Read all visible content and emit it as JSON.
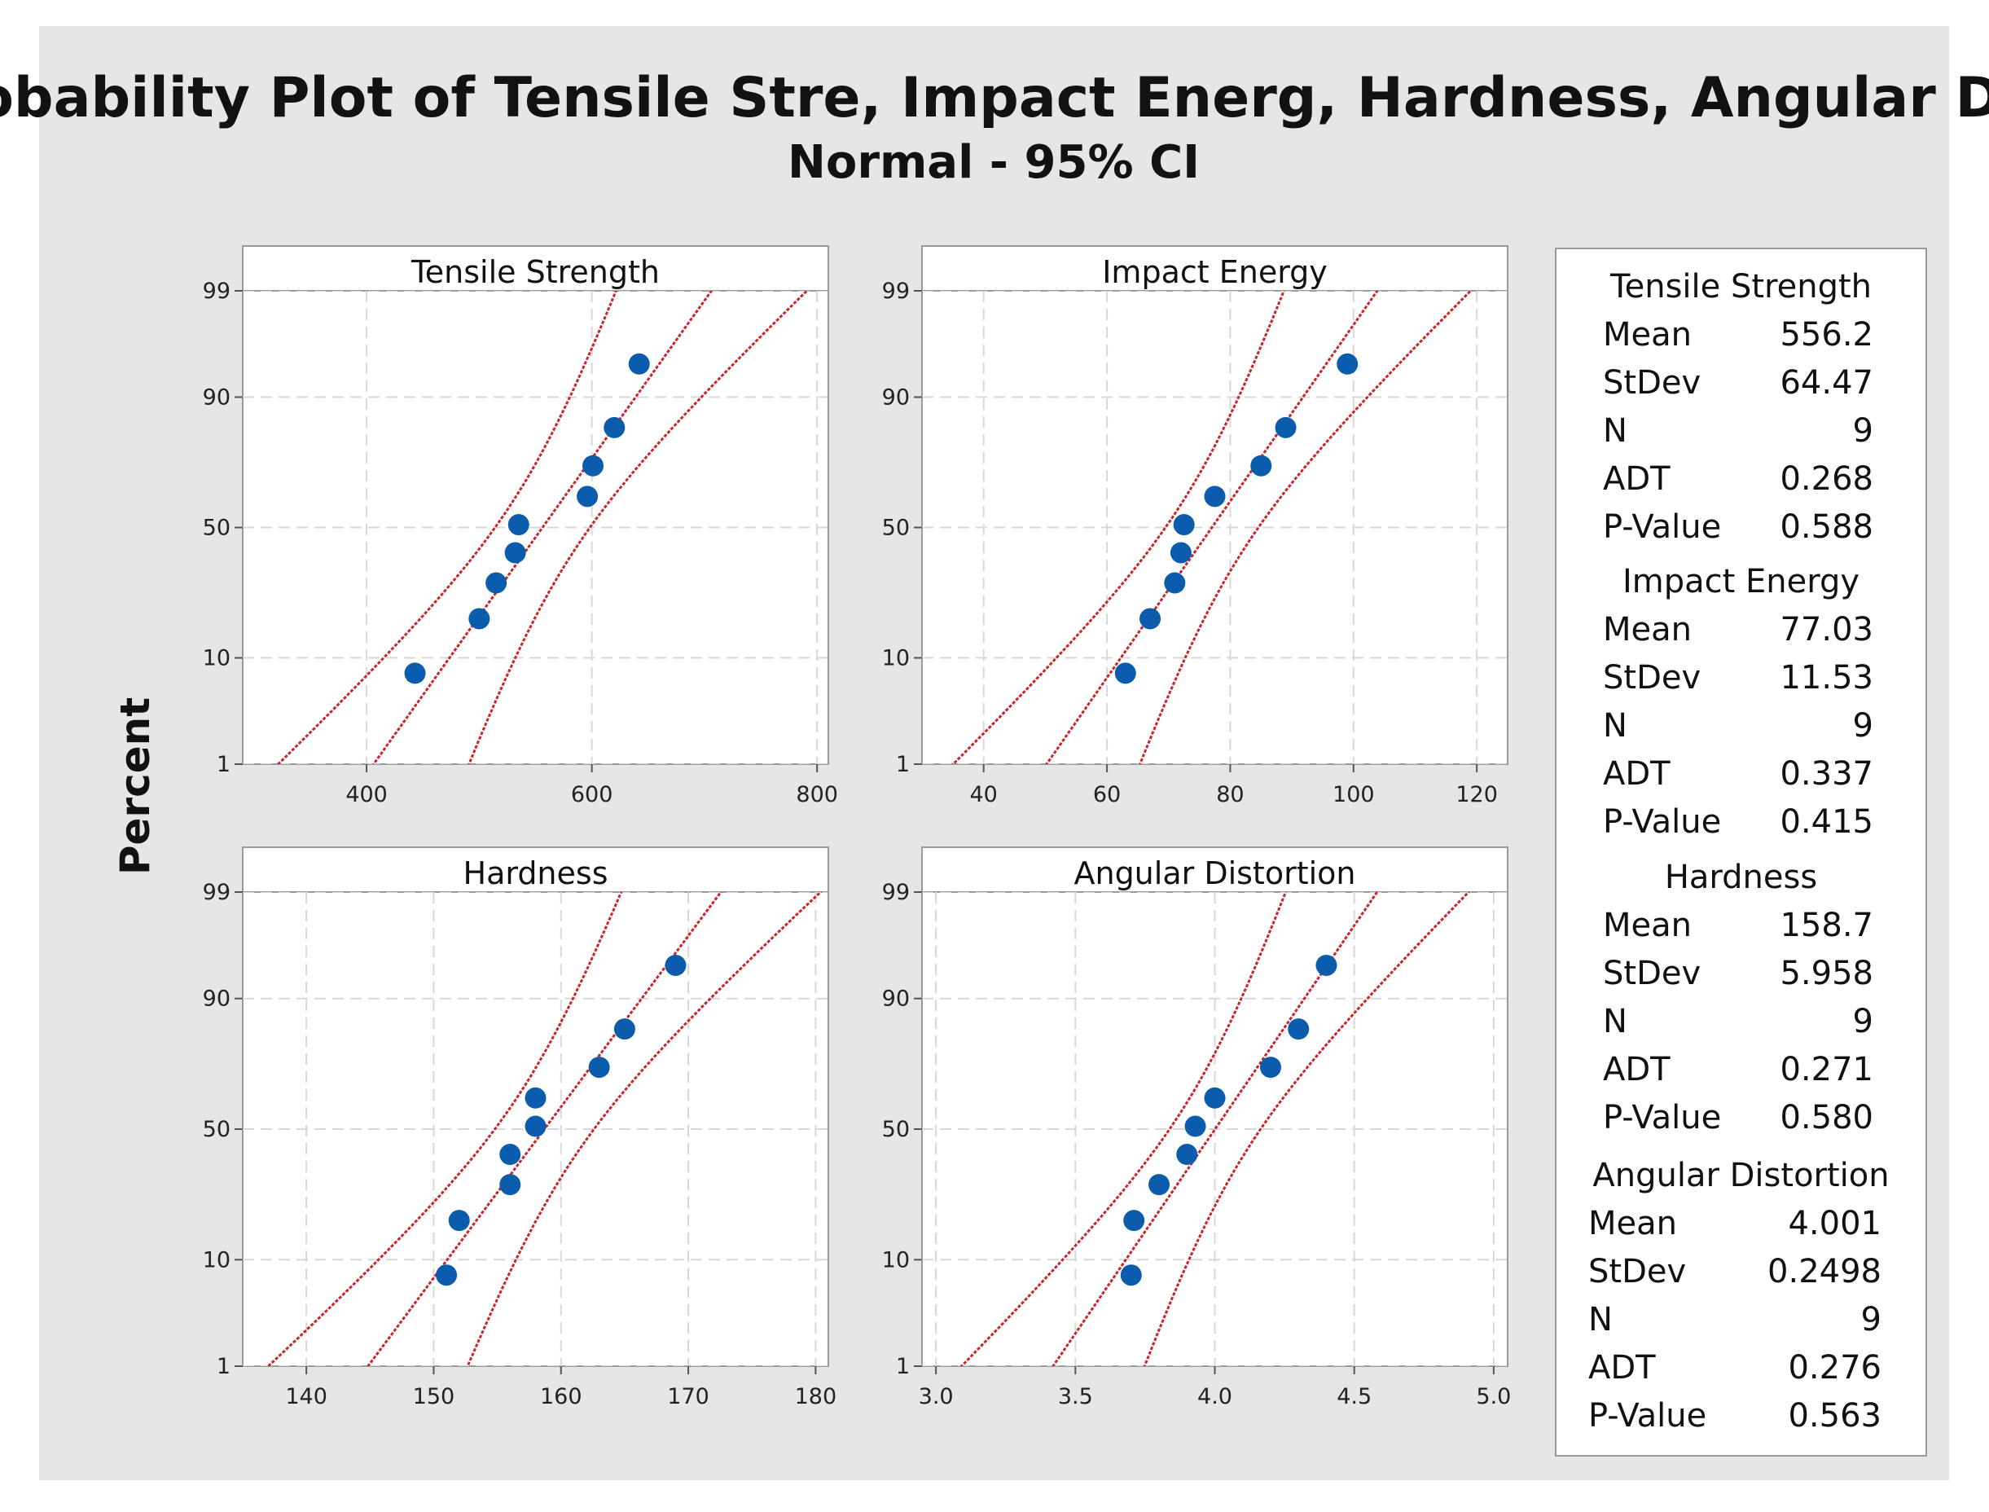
{
  "chart_data": {
    "type": "scatter",
    "title": "Probability Plot of Tensile Stre, Impact Energ, Hardness, Angular Dist",
    "subtitle": "Normal - 95% CI",
    "ylabel": "Percent",
    "y_ticks": [
      1,
      10,
      50,
      90,
      99
    ],
    "colors": {
      "points": "#0b5cad",
      "fit": "#c8262b",
      "background": "#e6e6e6",
      "panel": "#ffffff",
      "grid": "#d8d8d8"
    },
    "panels": [
      {
        "name": "Tensile Strength",
        "xlim": [
          290,
          810
        ],
        "x_ticks": [
          400,
          600,
          800
        ],
        "mean": 556.2,
        "stdev": 64.47,
        "n": 9,
        "points": [
          {
            "x": 443,
            "p": 7.6
          },
          {
            "x": 500,
            "p": 18.5
          },
          {
            "x": 515,
            "p": 29.3
          },
          {
            "x": 532,
            "p": 40.2
          },
          {
            "x": 535,
            "p": 51.1
          },
          {
            "x": 596,
            "p": 62.0
          },
          {
            "x": 601,
            "p": 72.8
          },
          {
            "x": 620,
            "p": 83.7
          },
          {
            "x": 642,
            "p": 94.6
          }
        ],
        "legend": [
          [
            "Mean",
            "556.2"
          ],
          [
            "StDev",
            "64.47"
          ],
          [
            "N",
            "9"
          ],
          [
            "ADT",
            "0.268"
          ],
          [
            "P-Value",
            "0.588"
          ]
        ]
      },
      {
        "name": "Impact Energy",
        "xlim": [
          30,
          125
        ],
        "x_ticks": [
          40,
          60,
          80,
          100,
          120
        ],
        "mean": 77.03,
        "stdev": 11.53,
        "n": 9,
        "points": [
          {
            "x": 63,
            "p": 7.6
          },
          {
            "x": 67,
            "p": 18.5
          },
          {
            "x": 71,
            "p": 29.3
          },
          {
            "x": 72,
            "p": 40.2
          },
          {
            "x": 72.5,
            "p": 51.1
          },
          {
            "x": 77.5,
            "p": 62.0
          },
          {
            "x": 85,
            "p": 72.8
          },
          {
            "x": 89,
            "p": 83.7
          },
          {
            "x": 99,
            "p": 94.6
          }
        ],
        "legend": [
          [
            "Mean",
            "77.03"
          ],
          [
            "StDev",
            "11.53"
          ],
          [
            "N",
            "9"
          ],
          [
            "ADT",
            "0.337"
          ],
          [
            "P-Value",
            "0.415"
          ]
        ]
      },
      {
        "name": "Hardness",
        "xlim": [
          135,
          181
        ],
        "x_ticks": [
          140,
          150,
          160,
          170,
          180
        ],
        "mean": 158.7,
        "stdev": 5.958,
        "n": 9,
        "points": [
          {
            "x": 151,
            "p": 7.6
          },
          {
            "x": 152,
            "p": 18.5
          },
          {
            "x": 156,
            "p": 29.3
          },
          {
            "x": 156,
            "p": 40.2
          },
          {
            "x": 158,
            "p": 51.1
          },
          {
            "x": 158,
            "p": 62.0
          },
          {
            "x": 163,
            "p": 72.8
          },
          {
            "x": 165,
            "p": 83.7
          },
          {
            "x": 169,
            "p": 94.6
          }
        ],
        "legend": [
          [
            "Mean",
            "158.7"
          ],
          [
            "StDev",
            "5.958"
          ],
          [
            "N",
            "9"
          ],
          [
            "ADT",
            "0.271"
          ],
          [
            "P-Value",
            "0.580"
          ]
        ]
      },
      {
        "name": "Angular Distortion",
        "xlim": [
          2.95,
          5.05
        ],
        "x_ticks": [
          "3.0",
          "3.5",
          "4.0",
          "4.5",
          "5.0"
        ],
        "mean": 4.001,
        "stdev": 0.2498,
        "n": 9,
        "points": [
          {
            "x": 3.7,
            "p": 7.6
          },
          {
            "x": 3.71,
            "p": 18.5
          },
          {
            "x": 3.8,
            "p": 29.3
          },
          {
            "x": 3.9,
            "p": 40.2
          },
          {
            "x": 3.93,
            "p": 51.1
          },
          {
            "x": 4.0,
            "p": 62.0
          },
          {
            "x": 4.2,
            "p": 72.8
          },
          {
            "x": 4.3,
            "p": 83.7
          },
          {
            "x": 4.4,
            "p": 94.6
          }
        ],
        "legend": [
          [
            "Mean",
            "4.001"
          ],
          [
            "StDev",
            "0.2498"
          ],
          [
            "N",
            "9"
          ],
          [
            "ADT",
            "0.276"
          ],
          [
            "P-Value",
            "0.563"
          ]
        ]
      }
    ]
  }
}
